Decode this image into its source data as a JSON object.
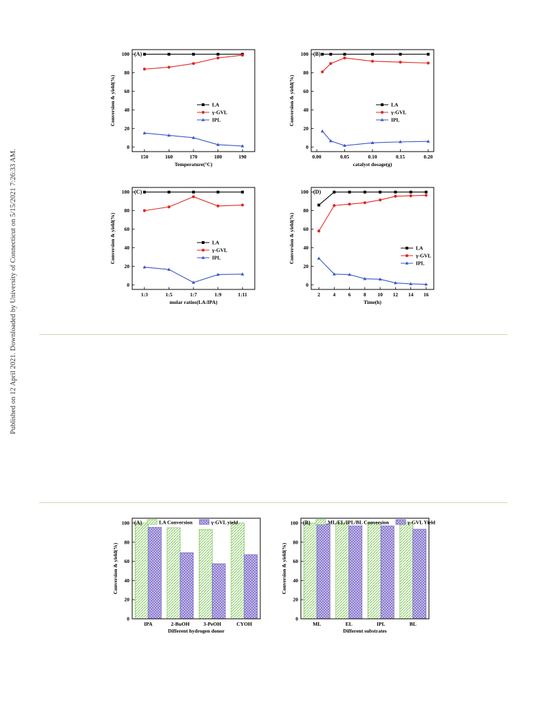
{
  "side_note": "Published on 12 April 2021. Downloaded by University of Connecticut on 5/15/2021 7:26:33 AM.",
  "colors": {
    "LA": "#000000",
    "gvl": "#e0261f",
    "ipl": "#3a56c4",
    "bar1": "#7fc95a",
    "bar2": "#7a6ac8"
  },
  "chart_data": [
    {
      "type": "line",
      "panel_label": "(A)",
      "xlabel": "Temperature(°C)",
      "ylabel": "Conversion & yield(%)",
      "x": [
        150,
        160,
        170,
        180,
        190
      ],
      "x_tick_labels": [
        "150",
        "160",
        "170",
        "180",
        "190"
      ],
      "xlim": [
        145,
        195
      ],
      "ylim": [
        -5,
        105
      ],
      "y_ticks": [
        0,
        20,
        40,
        60,
        80,
        100
      ],
      "legend_position": "middle-right",
      "series": [
        {
          "name": "LA",
          "values": [
            100,
            100,
            100,
            100,
            100
          ]
        },
        {
          "name": "γ-GVL",
          "values": [
            84,
            86,
            90,
            96,
            99
          ]
        },
        {
          "name": "IPL",
          "values": [
            15,
            12.5,
            10,
            2.5,
            1
          ]
        }
      ]
    },
    {
      "type": "line",
      "panel_label": "(B)",
      "xlabel": "catalyst dosage(g)",
      "ylabel": "Conversion & yield(%)",
      "x": [
        0.01,
        0.025,
        0.05,
        0.1,
        0.15,
        0.2
      ],
      "x_tick_labels": [
        "0.00",
        "0.05",
        "0.10",
        "0.15",
        "0.20"
      ],
      "x_ticks": [
        0,
        0.05,
        0.1,
        0.15,
        0.2
      ],
      "xlim": [
        -0.01,
        0.21
      ],
      "ylim": [
        -5,
        105
      ],
      "y_ticks": [
        0,
        20,
        40,
        60,
        80,
        100
      ],
      "legend_position": "middle-right",
      "series": [
        {
          "name": "LA",
          "values": [
            100,
            100,
            100,
            100,
            100,
            100
          ]
        },
        {
          "name": "γ-GVL",
          "values": [
            81,
            90,
            96,
            92.5,
            91.5,
            90.5
          ]
        },
        {
          "name": "IPL",
          "values": [
            17,
            6.5,
            1.5,
            4.5,
            5.5,
            6
          ]
        }
      ]
    },
    {
      "type": "line",
      "panel_label": "(C)",
      "xlabel": "molar ratios(LA:IPA)",
      "ylabel": "Conversion & yield(%)",
      "x": [
        1,
        2,
        3,
        4,
        5
      ],
      "x_tick_labels": [
        "1:3",
        "1:5",
        "1:7",
        "1:9",
        "1:11"
      ],
      "xlim": [
        0.5,
        5.5
      ],
      "ylim": [
        -5,
        105
      ],
      "y_ticks": [
        0,
        20,
        40,
        60,
        80,
        100
      ],
      "legend_position": "middle-right",
      "series": [
        {
          "name": "LA",
          "values": [
            100,
            100,
            100,
            100,
            100
          ]
        },
        {
          "name": "γ-GVL",
          "values": [
            80,
            84,
            95,
            85,
            86
          ]
        },
        {
          "name": "IPL",
          "values": [
            19,
            16.5,
            2.5,
            11,
            11.5
          ]
        }
      ]
    },
    {
      "type": "line",
      "panel_label": "(D)",
      "xlabel": "Time(h)",
      "ylabel": "Conversion & yield(%)",
      "x": [
        2,
        4,
        6,
        8,
        10,
        12,
        14,
        16
      ],
      "x_tick_labels": [
        "2",
        "4",
        "6",
        "8",
        "10",
        "12",
        "14",
        "16"
      ],
      "xlim": [
        1,
        17
      ],
      "ylim": [
        -5,
        105
      ],
      "y_ticks": [
        0,
        20,
        40,
        60,
        80,
        100
      ],
      "legend_position": "lower-right",
      "series": [
        {
          "name": "LA",
          "values": [
            86,
            100,
            100,
            100,
            100,
            100,
            100,
            100
          ]
        },
        {
          "name": "γ-GVL",
          "values": [
            58,
            85.5,
            87,
            88.5,
            91.5,
            95.5,
            96,
            96.5
          ]
        },
        {
          "name": "IPL",
          "values": [
            28.5,
            11.5,
            11,
            6.5,
            6,
            2,
            1,
            0.5
          ]
        }
      ]
    },
    {
      "type": "bar",
      "panel_label": "(A)",
      "xlabel": "Different hydrogen donor",
      "ylabel": "Conversion & yield(%)",
      "categories": [
        "IPA",
        "2-BuOH",
        "3-PeOH",
        "CYOH"
      ],
      "ylim": [
        0,
        105
      ],
      "y_ticks": [
        0,
        20,
        40,
        60,
        80,
        100
      ],
      "legend_position": "top",
      "series": [
        {
          "name": "LA Conversion",
          "values": [
            100,
            95,
            93,
            100
          ]
        },
        {
          "name": "γ-GVL  yield",
          "values": [
            95.5,
            69,
            57.5,
            67
          ]
        }
      ]
    },
    {
      "type": "bar",
      "panel_label": "(B)",
      "xlabel": "Different substrates",
      "ylabel": "Conversion & yield(%)",
      "categories": [
        "ML",
        "EL",
        "IPL",
        "BL"
      ],
      "ylim": [
        0,
        105
      ],
      "y_ticks": [
        0,
        20,
        40,
        60,
        80,
        100
      ],
      "legend_position": "top",
      "series": [
        {
          "name": "ML/EL/IPL/BL Conversion",
          "values": [
            100,
            100,
            100,
            100
          ]
        },
        {
          "name": "γ-GVL Yield",
          "values": [
            99,
            97,
            97,
            93.5
          ]
        }
      ]
    }
  ]
}
